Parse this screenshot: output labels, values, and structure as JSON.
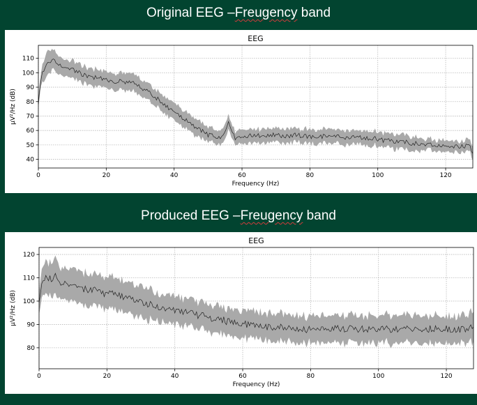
{
  "banners": [
    {
      "prefix": "Original EEG –",
      "squiggle": "Freugency",
      "suffix": " band"
    },
    {
      "prefix": "Produced EEG –",
      "squiggle": "Freugency",
      "suffix": " band"
    }
  ],
  "chart_data": [
    {
      "type": "line",
      "title": "EEG",
      "xlabel": "Frequency (Hz)",
      "ylabel": "µV²/Hz (dB)",
      "xlim": [
        0,
        128
      ],
      "ylim": [
        34,
        119
      ],
      "xticks": [
        0,
        20,
        40,
        60,
        80,
        100,
        120
      ],
      "yticks": [
        40,
        50,
        60,
        70,
        80,
        90,
        100,
        110
      ],
      "grid": true,
      "series": [
        {
          "x": [
            0,
            1,
            2,
            3,
            4,
            5,
            6,
            8,
            10,
            12,
            14,
            16,
            18,
            20,
            22,
            24,
            26,
            28,
            30,
            32,
            34,
            36,
            38,
            40,
            42,
            44,
            46,
            48,
            50,
            52,
            54,
            55,
            56,
            57,
            58,
            60,
            62,
            64,
            66,
            68,
            70,
            72,
            74,
            76,
            78,
            80,
            82,
            84,
            86,
            88,
            90,
            92,
            94,
            96,
            98,
            100,
            102,
            104,
            106,
            108,
            110,
            112,
            114,
            116,
            118,
            120,
            122,
            124,
            126,
            127,
            128
          ],
          "y": [
            80,
            98,
            105,
            107,
            109,
            108,
            106,
            104,
            102,
            100,
            98,
            97,
            96,
            95,
            94,
            94,
            93,
            93,
            90,
            87,
            84,
            80,
            76,
            72,
            69,
            66,
            63,
            60,
            57,
            56,
            55,
            58,
            65,
            58,
            55,
            56,
            56,
            57,
            56,
            57,
            57,
            56,
            56,
            57,
            56,
            56,
            55,
            56,
            55,
            56,
            55,
            55,
            56,
            54,
            55,
            54,
            53,
            53,
            52,
            52,
            51,
            51,
            50,
            50,
            49,
            49,
            49,
            49,
            49,
            49,
            45
          ],
          "band": [
            2,
            5,
            7,
            7,
            6,
            6,
            5,
            5,
            5,
            5,
            5,
            5,
            5,
            5,
            5,
            5,
            5,
            5,
            5,
            5,
            5,
            5,
            5,
            5,
            5,
            5,
            5,
            5,
            4,
            4,
            4,
            4,
            4,
            4,
            4,
            4,
            4,
            4,
            4,
            4,
            4,
            4,
            4,
            4,
            4,
            4,
            4,
            4,
            4,
            4,
            4,
            4,
            4,
            4,
            4,
            4,
            4,
            4,
            4,
            4,
            4,
            4,
            3,
            3,
            3,
            3,
            3,
            3,
            3,
            3,
            4
          ]
        }
      ]
    },
    {
      "type": "line",
      "title": "EEG",
      "xlabel": "Frequency (Hz)",
      "ylabel": "µV²/Hz (dB)",
      "xlim": [
        0,
        128
      ],
      "ylim": [
        71,
        123
      ],
      "xticks": [
        0,
        20,
        40,
        60,
        80,
        100,
        120
      ],
      "yticks": [
        80,
        90,
        100,
        110,
        120
      ],
      "grid": true,
      "series": [
        {
          "x": [
            0,
            1,
            2,
            3,
            4,
            5,
            6,
            8,
            10,
            12,
            14,
            16,
            18,
            20,
            22,
            24,
            26,
            28,
            30,
            32,
            34,
            36,
            38,
            40,
            42,
            44,
            46,
            48,
            50,
            52,
            54,
            56,
            58,
            60,
            62,
            64,
            66,
            68,
            70,
            72,
            74,
            76,
            78,
            80,
            82,
            84,
            86,
            88,
            90,
            92,
            94,
            96,
            98,
            100,
            102,
            104,
            106,
            108,
            110,
            112,
            114,
            116,
            118,
            120,
            122,
            124,
            126,
            128
          ],
          "y": [
            101,
            109,
            111,
            110,
            109,
            112,
            108,
            107,
            106,
            106,
            105,
            105,
            104,
            103,
            103,
            102,
            101,
            101,
            100,
            99,
            98,
            97,
            96,
            96,
            95,
            95,
            94,
            94,
            93,
            92,
            92,
            91,
            91,
            90,
            90,
            90,
            89,
            89,
            89,
            89,
            88,
            88,
            88,
            88,
            88,
            88,
            88,
            88,
            88,
            88,
            88,
            88,
            88,
            88,
            88,
            88,
            88,
            88,
            88,
            88,
            88,
            88,
            88,
            88,
            88,
            88,
            88,
            89
          ],
          "band": [
            4,
            5,
            6,
            6,
            6,
            7,
            6,
            6,
            6,
            6,
            6,
            6,
            6,
            6,
            6,
            6,
            6,
            6,
            6,
            6,
            5,
            5,
            5,
            5,
            5,
            5,
            5,
            5,
            5,
            5,
            5,
            5,
            5,
            5,
            5,
            5,
            5,
            5,
            5,
            5,
            5,
            5,
            5,
            5,
            5,
            5,
            5,
            5,
            5,
            5,
            5,
            5,
            5,
            5,
            5,
            5,
            5,
            5,
            5,
            5,
            5,
            5,
            5,
            5,
            5,
            5,
            5,
            6
          ]
        }
      ]
    }
  ]
}
